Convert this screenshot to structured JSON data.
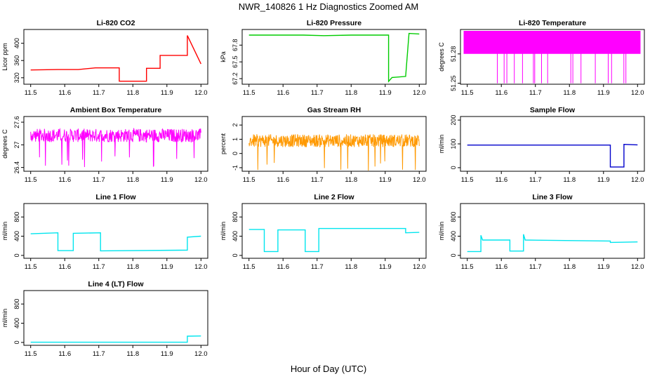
{
  "title": "NWR_140826  1 Hz Diagnostics Zoomed AM",
  "xlabel": "Hour of Day (UTC)",
  "chart_data": [
    {
      "type": "line",
      "title": "Li-820 CO2",
      "ylabel": "Licor ppm",
      "color": "#ff0000",
      "xlim": [
        11.5,
        12.0
      ],
      "ylim": [
        305,
        432
      ],
      "yticks": [
        320,
        360,
        400
      ],
      "xticks": [
        11.5,
        11.6,
        11.7,
        11.8,
        11.9,
        12.0
      ],
      "series": [
        {
          "name": "CO2",
          "x": [
            11.5,
            11.58,
            11.64,
            11.69,
            11.76,
            11.76,
            11.84,
            11.84,
            11.88,
            11.88,
            11.96,
            11.96,
            12.0
          ],
          "y": [
            338,
            339,
            339,
            343,
            343,
            312,
            312,
            342,
            342,
            372,
            372,
            418,
            352
          ]
        }
      ]
    },
    {
      "type": "line",
      "title": "Li-820 Pressure",
      "ylabel": "kPa",
      "color": "#00cc00",
      "xlim": [
        11.5,
        12.0
      ],
      "ylim": [
        67.1,
        68.08
      ],
      "yticks": [
        67.2,
        67.5,
        67.8
      ],
      "xticks": [
        11.5,
        11.6,
        11.7,
        11.8,
        11.9,
        12.0
      ],
      "series": [
        {
          "name": "Pressure",
          "x": [
            11.5,
            11.66,
            11.72,
            11.8,
            11.91,
            11.91,
            11.92,
            11.96,
            11.97,
            12.0
          ],
          "y": [
            67.98,
            67.98,
            67.97,
            67.98,
            67.98,
            67.15,
            67.22,
            67.24,
            68.01,
            68.0
          ]
        }
      ]
    },
    {
      "type": "line",
      "title": "Li-820 Temperature",
      "ylabel": "degrees C",
      "color": "#ff00ff",
      "xlim": [
        11.5,
        12.0
      ],
      "ylim": [
        51.249,
        51.305
      ],
      "yticks": [
        51.25,
        51.28
      ],
      "xticks": [
        11.5,
        11.6,
        11.7,
        11.8,
        11.9,
        12.0
      ],
      "series": [
        {
          "name": "Temperature",
          "x": [
            11.5,
            12.0
          ],
          "y": [
            51.28,
            51.28
          ]
        }
      ]
    },
    {
      "type": "line",
      "title": "Ambient Box Temperature",
      "ylabel": "degrees C",
      "color": "#ff00ff",
      "xlim": [
        11.5,
        12.0
      ],
      "ylim": [
        26.3,
        27.75
      ],
      "yticks": [
        26.4,
        27.0,
        27.6
      ],
      "xticks": [
        11.5,
        11.6,
        11.7,
        11.8,
        11.9,
        12.0
      ],
      "series": [
        {
          "name": "Box Temp",
          "x": [
            11.5,
            12.0
          ],
          "y": [
            27.25,
            27.25
          ]
        }
      ]
    },
    {
      "type": "line",
      "title": "Gas Stream RH",
      "ylabel": "percent",
      "color": "#ff9900",
      "xlim": [
        11.5,
        12.0
      ],
      "ylim": [
        -1.25,
        2.6
      ],
      "yticks": [
        -1,
        0,
        1,
        2
      ],
      "xticks": [
        11.5,
        11.6,
        11.7,
        11.8,
        11.9,
        12.0
      ],
      "series": [
        {
          "name": "RH",
          "x": [
            11.5,
            12.0
          ],
          "y": [
            0.9,
            0.9
          ]
        }
      ]
    },
    {
      "type": "line",
      "title": "Sample Flow",
      "ylabel": "ml/min",
      "color": "#0000cc",
      "xlim": [
        11.5,
        12.0
      ],
      "ylim": [
        -15,
        215
      ],
      "yticks": [
        0,
        100,
        200
      ],
      "xticks": [
        11.5,
        11.6,
        11.7,
        11.8,
        11.9,
        12.0
      ],
      "series": [
        {
          "name": "Sample Flow",
          "x": [
            11.5,
            11.92,
            11.92,
            11.96,
            11.96,
            12.0
          ],
          "y": [
            95,
            95,
            3,
            3,
            98,
            96
          ]
        }
      ]
    },
    {
      "type": "line",
      "title": "Line 1 Flow",
      "ylabel": "ml/min",
      "color": "#00e5ee",
      "xlim": [
        11.5,
        12.0
      ],
      "ylim": [
        -60,
        1080
      ],
      "yticks": [
        0,
        400,
        800
      ],
      "xticks": [
        11.5,
        11.6,
        11.7,
        11.8,
        11.9,
        12.0
      ],
      "series": [
        {
          "name": "Line 1",
          "x": [
            11.5,
            11.58,
            11.58,
            11.625,
            11.625,
            11.705,
            11.705,
            11.96,
            11.96,
            12.0
          ],
          "y": [
            450,
            470,
            100,
            100,
            460,
            470,
            95,
            110,
            380,
            400
          ]
        }
      ]
    },
    {
      "type": "line",
      "title": "Line 2 Flow",
      "ylabel": "ml/min",
      "color": "#00e5ee",
      "xlim": [
        11.5,
        12.0
      ],
      "ylim": [
        -60,
        1080
      ],
      "yticks": [
        0,
        400,
        800
      ],
      "xticks": [
        11.5,
        11.6,
        11.7,
        11.8,
        11.9,
        12.0
      ],
      "series": [
        {
          "name": "Line 2",
          "x": [
            11.5,
            11.545,
            11.545,
            11.585,
            11.585,
            11.665,
            11.665,
            11.705,
            11.705,
            11.96,
            11.96,
            12.0
          ],
          "y": [
            540,
            540,
            80,
            80,
            530,
            530,
            80,
            80,
            560,
            560,
            470,
            480
          ]
        }
      ]
    },
    {
      "type": "line",
      "title": "Line 3 Flow",
      "ylabel": "ml/min",
      "color": "#00e5ee",
      "xlim": [
        11.5,
        12.0
      ],
      "ylim": [
        -60,
        1080
      ],
      "yticks": [
        0,
        400,
        800
      ],
      "xticks": [
        11.5,
        11.6,
        11.7,
        11.8,
        11.9,
        12.0
      ],
      "series": [
        {
          "name": "Line 3",
          "x": [
            11.5,
            11.54,
            11.54,
            11.545,
            11.625,
            11.625,
            11.665,
            11.665,
            11.67,
            11.92,
            11.92,
            12.0
          ],
          "y": [
            80,
            80,
            420,
            320,
            320,
            90,
            90,
            440,
            320,
            300,
            270,
            280
          ]
        }
      ]
    },
    {
      "type": "line",
      "title": "Line 4 (LT) Flow",
      "ylabel": "ml/min",
      "color": "#00e5ee",
      "xlim": [
        11.5,
        12.0
      ],
      "ylim": [
        -60,
        1080
      ],
      "yticks": [
        0,
        400,
        800
      ],
      "xticks": [
        11.5,
        11.6,
        11.7,
        11.8,
        11.9,
        12.0
      ],
      "series": [
        {
          "name": "Line 4",
          "x": [
            11.5,
            11.96,
            11.96,
            12.0
          ],
          "y": [
            5,
            5,
            130,
            135
          ]
        }
      ]
    }
  ]
}
